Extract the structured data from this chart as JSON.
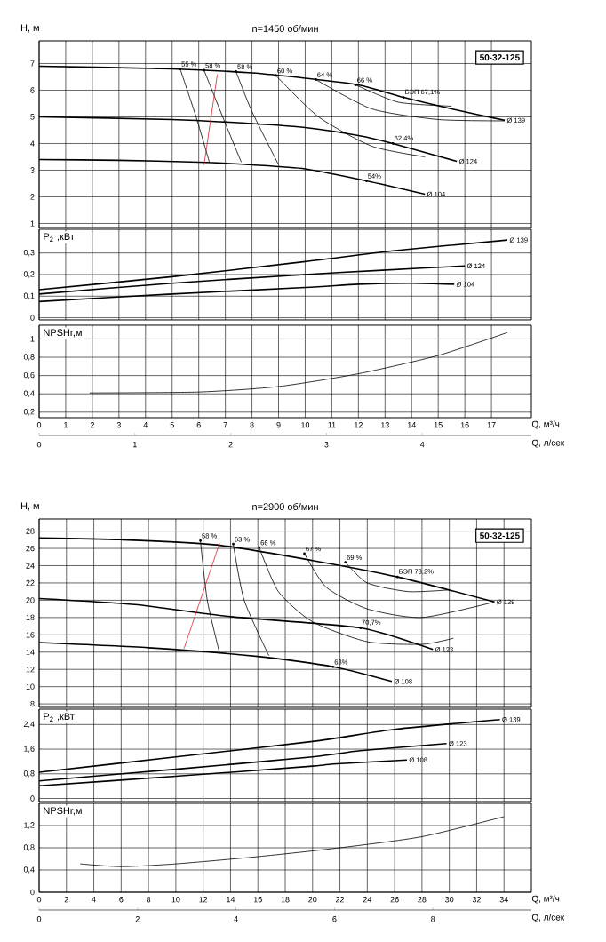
{
  "chart_data": [
    {
      "type": "line",
      "title": "n=1450 об/мин",
      "ylabel": "H, м",
      "xlim": [
        0,
        18.5
      ],
      "ylim": [
        0.85,
        7.85
      ],
      "xticks": [
        0,
        1,
        2,
        3,
        4,
        5,
        6,
        7,
        8,
        9,
        10,
        11,
        12,
        13,
        14,
        15,
        16,
        17
      ],
      "yticks": [
        1,
        2,
        3,
        4,
        5,
        6,
        7
      ],
      "grid": true,
      "tick_labels": "y",
      "annotations": [
        "50-32-125",
        {
          "text": "55 %",
          "x": 5.3,
          "y": 6.8
        },
        {
          "text": "58 %",
          "x": 6.2,
          "y": 6.75
        },
        {
          "text": "58 %",
          "x": 7.4,
          "y": 6.7
        },
        {
          "text": "60 %",
          "x": 8.9,
          "y": 6.55
        },
        {
          "text": "64 %",
          "x": 10.4,
          "y": 6.4
        },
        {
          "text": "66 %",
          "x": 11.9,
          "y": 6.2
        },
        {
          "text": "БЭП 67,1%",
          "x": 13.7,
          "y": 5.73
        },
        {
          "text": "62,4%",
          "x": 13.3,
          "y": 4.0
        },
        {
          "text": "54%",
          "x": 12.3,
          "y": 2.6
        }
      ],
      "series": [
        {
          "name": "Ø 139",
          "color": "#000000",
          "x": [
            0,
            5,
            8,
            10,
            12,
            13.7,
            15.5,
            17.5
          ],
          "values": [
            6.9,
            6.8,
            6.65,
            6.45,
            6.2,
            5.73,
            5.3,
            4.87
          ]
        },
        {
          "name": "Ø 124",
          "color": "#000000",
          "x": [
            0,
            5,
            8,
            10,
            12,
            13.3,
            15.7
          ],
          "values": [
            5.0,
            4.9,
            4.75,
            4.6,
            4.3,
            4.0,
            3.33
          ]
        },
        {
          "name": "Ø 104",
          "color": "#000000",
          "x": [
            0,
            3,
            6,
            8,
            10,
            12.3,
            14.5
          ],
          "values": [
            3.4,
            3.37,
            3.3,
            3.2,
            3.05,
            2.6,
            2.1
          ]
        },
        {
          "color": "#000000",
          "x": [
            5.3,
            5.9,
            6.4
          ],
          "values": [
            6.8,
            5.0,
            3.3
          ]
        },
        {
          "color": "#000000",
          "x": [
            6.2,
            6.9,
            7.6
          ],
          "values": [
            6.75,
            5.0,
            3.3
          ]
        },
        {
          "color": "#000000",
          "x": [
            7.4,
            8.0,
            9.0
          ],
          "values": [
            6.7,
            5.2,
            3.2
          ]
        },
        {
          "color": "#000000",
          "x": [
            8.9,
            10.5,
            12.5,
            14.5
          ],
          "values": [
            6.55,
            5.0,
            3.9,
            3.5
          ]
        },
        {
          "color": "#000000",
          "x": [
            10.4,
            12.5,
            15,
            17.5
          ],
          "values": [
            6.4,
            5.3,
            4.9,
            4.85
          ]
        },
        {
          "color": "#000000",
          "x": [
            11.9,
            13.5,
            15.5
          ],
          "values": [
            6.2,
            5.55,
            5.4
          ]
        },
        {
          "color": "#d62027",
          "x": [
            6.2,
            6.7
          ],
          "values": [
            3.2,
            6.6
          ]
        }
      ]
    },
    {
      "type": "line",
      "ylabel": "P$_{2}$ ,кВт",
      "xlim": [
        0,
        18.5
      ],
      "ylim": [
        -0.01,
        0.41
      ],
      "xticks": [
        0,
        1,
        2,
        3,
        4,
        5,
        6,
        7,
        8,
        9,
        10,
        11,
        12,
        13,
        14,
        15,
        16,
        17
      ],
      "yticks": [
        0,
        {
          "value": 0.1,
          "label": "0,1"
        },
        {
          "value": 0.2,
          "label": "0,2"
        },
        {
          "value": 0.3,
          "label": "0,3"
        }
      ],
      "grid": true,
      "tick_labels": "y",
      "series": [
        {
          "name": "Ø 139",
          "color": "#000000",
          "x": [
            0,
            5,
            10,
            13.3,
            17.6
          ],
          "values": [
            0.13,
            0.19,
            0.26,
            0.31,
            0.36
          ]
        },
        {
          "name": "Ø 124",
          "color": "#000000",
          "x": [
            0,
            5,
            10,
            12.9,
            16.0
          ],
          "values": [
            0.11,
            0.16,
            0.2,
            0.22,
            0.24
          ]
        },
        {
          "name": "Ø 104",
          "color": "#000000",
          "x": [
            0,
            5,
            10,
            12,
            14,
            15.6
          ],
          "values": [
            0.075,
            0.11,
            0.14,
            0.155,
            0.16,
            0.155
          ]
        }
      ]
    },
    {
      "type": "line",
      "ylabel": "NPSHr,м",
      "xlabel": "Q, м³/ч",
      "x2label": "Q, л/сек",
      "xlim": [
        0,
        18.5
      ],
      "ylim": [
        0.14,
        1.15
      ],
      "xticks": [
        0,
        1,
        2,
        3,
        4,
        5,
        6,
        7,
        8,
        9,
        10,
        11,
        12,
        13,
        14,
        15,
        16,
        17
      ],
      "yticks": [
        {
          "value": 0.2,
          "label": "0,2"
        },
        {
          "value": 0.4,
          "label": "0,4"
        },
        {
          "value": 0.6,
          "label": "0,6"
        },
        {
          "value": 0.8,
          "label": "0,8"
        },
        1
      ],
      "x2lim": [
        0,
        5.139
      ],
      "x2ticks": [
        0,
        1,
        2,
        3,
        4
      ],
      "grid": true,
      "series": [
        {
          "color": "#000000",
          "x": [
            1.9,
            6,
            9,
            12,
            15,
            17.6
          ],
          "values": [
            0.41,
            0.42,
            0.48,
            0.62,
            0.82,
            1.07
          ]
        }
      ]
    },
    {
      "type": "line",
      "title": "n=2900 об/мин",
      "ylabel": "H, м",
      "xlim": [
        0,
        36
      ],
      "ylim": [
        7.6,
        29.4
      ],
      "xticks": [
        0,
        2,
        4,
        6,
        8,
        10,
        12,
        14,
        16,
        18,
        20,
        22,
        24,
        26,
        28,
        30,
        32,
        34
      ],
      "yticks": [
        8,
        10,
        12,
        14,
        16,
        18,
        20,
        22,
        24,
        26,
        28
      ],
      "grid": true,
      "tick_labels": "y",
      "annotations": [
        "50-32-125",
        {
          "text": "58 %",
          "x": 11.8,
          "y": 26.9
        },
        {
          "text": "63 %",
          "x": 14.2,
          "y": 26.5
        },
        {
          "text": "66 %",
          "x": 16.1,
          "y": 26.1
        },
        {
          "text": "67 %",
          "x": 19.4,
          "y": 25.4
        },
        {
          "text": "69 %",
          "x": 22.4,
          "y": 24.4
        },
        {
          "text": "БЭП 73,2%",
          "x": 26.2,
          "y": 22.7
        },
        {
          "text": "70,7%",
          "x": 23.5,
          "y": 16.8
        },
        {
          "text": "63%",
          "x": 21.5,
          "y": 12.3
        }
      ],
      "series": [
        {
          "name": "Ø 139",
          "color": "#000000",
          "x": [
            0,
            6,
            13,
            20,
            26.2,
            33.3
          ],
          "values": [
            27.2,
            27.0,
            26.4,
            24.6,
            22.7,
            19.8
          ]
        },
        {
          "name": "Ø 123",
          "color": "#000000",
          "x": [
            0,
            7,
            14,
            23.5,
            28.8
          ],
          "values": [
            20.2,
            19.5,
            18.1,
            16.8,
            14.3
          ]
        },
        {
          "name": "Ø 108",
          "color": "#000000",
          "x": [
            0,
            8,
            16,
            21.5,
            25.8
          ],
          "values": [
            15.1,
            14.5,
            13.5,
            12.3,
            10.6
          ]
        },
        {
          "color": "#000000",
          "x": [
            11.8,
            12.3,
            13.2
          ],
          "values": [
            26.9,
            20,
            13.9
          ]
        },
        {
          "color": "#000000",
          "x": [
            14.2,
            15,
            16.8
          ],
          "values": [
            26.5,
            20,
            13.6
          ]
        },
        {
          "color": "#000000",
          "x": [
            16.1,
            17.5,
            20,
            24,
            28,
            30.3
          ],
          "values": [
            26.1,
            21,
            17.5,
            15.2,
            14.9,
            15.6
          ]
        },
        {
          "color": "#000000",
          "x": [
            19.4,
            21,
            24,
            28,
            33.3
          ],
          "values": [
            25.4,
            21.5,
            19,
            18,
            19.8
          ]
        },
        {
          "color": "#000000",
          "x": [
            22.4,
            24,
            27,
            30
          ],
          "values": [
            24.4,
            22,
            21,
            21.2
          ]
        },
        {
          "color": "#d62027",
          "x": [
            10.6,
            13.2
          ],
          "values": [
            14.4,
            26.6
          ]
        }
      ]
    },
    {
      "type": "line",
      "ylabel": "P$_{2}$ ,кВт",
      "xlim": [
        0,
        36
      ],
      "ylim": [
        -0.1,
        2.9
      ],
      "xticks": [
        0,
        2,
        4,
        6,
        8,
        10,
        12,
        14,
        16,
        18,
        20,
        22,
        24,
        26,
        28,
        30,
        32,
        34
      ],
      "yticks": [
        0,
        {
          "value": 0.8,
          "label": "0,8"
        },
        {
          "value": 1.6,
          "label": "1,6"
        },
        {
          "value": 2.4,
          "label": "2,4"
        }
      ],
      "grid": true,
      "tick_labels": "y",
      "series": [
        {
          "name": "Ø 139",
          "color": "#000000",
          "x": [
            0,
            10,
            20,
            26.1,
            33.7
          ],
          "values": [
            0.85,
            1.35,
            1.85,
            2.25,
            2.56
          ]
        },
        {
          "name": "Ø 123",
          "color": "#000000",
          "x": [
            0,
            10,
            20,
            23.5,
            29.8
          ],
          "values": [
            0.57,
            0.95,
            1.35,
            1.55,
            1.78
          ]
        },
        {
          "name": "Ø 108",
          "color": "#000000",
          "x": [
            0,
            10,
            20,
            21.5,
            26.9
          ],
          "values": [
            0.41,
            0.72,
            1.05,
            1.12,
            1.25
          ]
        }
      ]
    },
    {
      "type": "line",
      "ylabel": "NPSHr,м",
      "xlabel": "Q, м³/ч",
      "x2label": "Q, л/сек",
      "xlim": [
        0,
        36
      ],
      "ylim": [
        0,
        1.6
      ],
      "xticks": [
        0,
        2,
        4,
        6,
        8,
        10,
        12,
        14,
        16,
        18,
        20,
        22,
        24,
        26,
        28,
        30,
        32,
        34
      ],
      "yticks": [
        0,
        {
          "value": 0.4,
          "label": "0,4"
        },
        {
          "value": 0.8,
          "label": "0,8"
        },
        {
          "value": 1.2,
          "label": "1,2"
        }
      ],
      "x2lim": [
        0,
        10
      ],
      "x2ticks": [
        0,
        2,
        4,
        6,
        8
      ],
      "grid": true,
      "series": [
        {
          "color": "#000000",
          "x": [
            3,
            6,
            10,
            16,
            22,
            28,
            34
          ],
          "values": [
            0.51,
            0.46,
            0.51,
            0.64,
            0.8,
            1.0,
            1.36
          ]
        }
      ]
    }
  ]
}
